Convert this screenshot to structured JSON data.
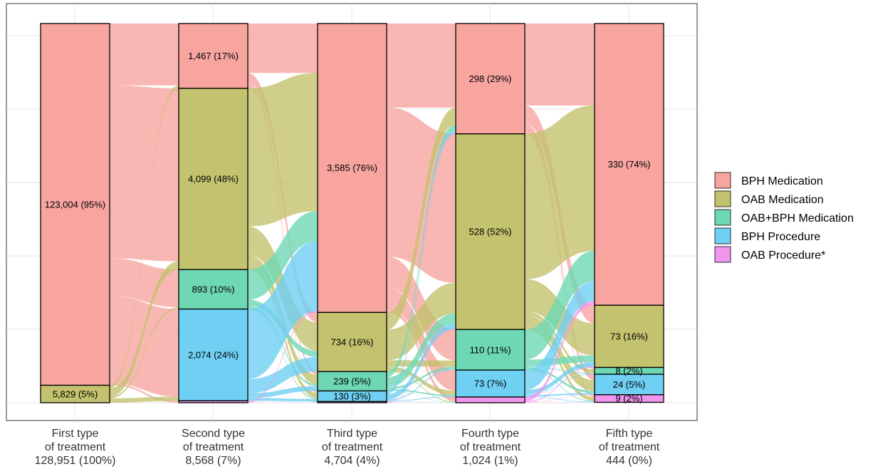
{
  "chart_data": {
    "type": "sankey",
    "title": "",
    "categories": [
      {
        "line1": "First type",
        "line2": "of treatment",
        "line3": "128,951 (100%)"
      },
      {
        "line1": "Second type",
        "line2": "of treatment",
        "line3": "8,568 (7%)"
      },
      {
        "line1": "Third type",
        "line2": "of treatment",
        "line3": "4,704 (4%)"
      },
      {
        "line1": "Fourth type",
        "line2": "of treatment",
        "line3": "1,024 (1%)"
      },
      {
        "line1": "Fifth type",
        "line2": "of treatment",
        "line3": "444 (0%)"
      }
    ],
    "series": [
      {
        "name": "BPH Medication",
        "color": "#F8A5A0"
      },
      {
        "name": "OAB Medication",
        "color": "#C3C26E"
      },
      {
        "name": "OAB+BPH Medication",
        "color": "#6ED8B4"
      },
      {
        "name": "BPH Procedure",
        "color": "#6FD0F4"
      },
      {
        "name": "OAB Procedure*",
        "color": "#F096EE"
      }
    ],
    "stages": [
      {
        "segments": [
          {
            "cat": 0,
            "fraction": 0.954,
            "label": "123,004 (95%)"
          },
          {
            "cat": 1,
            "fraction": 0.046,
            "label": "5,829 (5%)"
          }
        ]
      },
      {
        "segments": [
          {
            "cat": 0,
            "fraction": 0.171,
            "label": "1,467 (17%)"
          },
          {
            "cat": 1,
            "fraction": 0.478,
            "label": "4,099 (48%)"
          },
          {
            "cat": 2,
            "fraction": 0.104,
            "label": "893 (10%)"
          },
          {
            "cat": 3,
            "fraction": 0.242,
            "label": "2,074 (24%)"
          },
          {
            "cat": 4,
            "fraction": 0.005,
            "label": ""
          }
        ]
      },
      {
        "segments": [
          {
            "cat": 0,
            "fraction": 0.762,
            "label": "3,585 (76%)"
          },
          {
            "cat": 1,
            "fraction": 0.156,
            "label": "734 (16%)"
          },
          {
            "cat": 2,
            "fraction": 0.051,
            "label": "239 (5%)"
          },
          {
            "cat": 3,
            "fraction": 0.028,
            "label": "130 (3%)"
          },
          {
            "cat": 4,
            "fraction": 0.003,
            "label": ""
          }
        ]
      },
      {
        "segments": [
          {
            "cat": 0,
            "fraction": 0.291,
            "label": "298 (29%)"
          },
          {
            "cat": 1,
            "fraction": 0.516,
            "label": "528 (52%)"
          },
          {
            "cat": 2,
            "fraction": 0.107,
            "label": "110 (11%)"
          },
          {
            "cat": 3,
            "fraction": 0.071,
            "label": "73 (7%)"
          },
          {
            "cat": 4,
            "fraction": 0.015,
            "label": ""
          }
        ]
      },
      {
        "segments": [
          {
            "cat": 0,
            "fraction": 0.743,
            "label": "330 (74%)"
          },
          {
            "cat": 1,
            "fraction": 0.164,
            "label": "73 (16%)"
          },
          {
            "cat": 2,
            "fraction": 0.018,
            "label": "8 (2%)"
          },
          {
            "cat": 3,
            "fraction": 0.054,
            "label": "24 (5%)"
          },
          {
            "cat": 4,
            "fraction": 0.02,
            "label": "9 (2%)"
          }
        ]
      }
    ],
    "legend_position": "right",
    "grid": true
  }
}
